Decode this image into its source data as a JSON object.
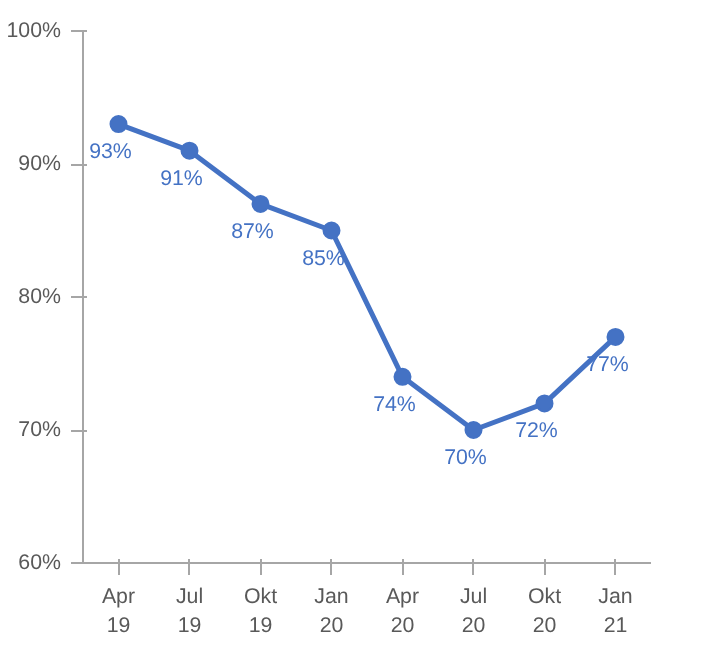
{
  "chart_data": {
    "type": "line",
    "categories": [
      "Apr\n19",
      "Jul\n19",
      "Okt\n19",
      "Jan\n20",
      "Apr\n20",
      "Jul\n20",
      "Okt\n20",
      "Jan\n21"
    ],
    "series": [
      {
        "color": "#4472c4",
        "values": [
          93,
          91,
          87,
          85,
          74,
          70,
          72,
          77
        ],
        "value_labels": [
          "93%",
          "91%",
          "87%",
          "85%",
          "74%",
          "70%",
          "72%",
          "77%"
        ]
      }
    ],
    "ylim": [
      60,
      100
    ],
    "yticks": [
      {
        "value": 60,
        "label": "60%"
      },
      {
        "value": 70,
        "label": "70%"
      },
      {
        "value": 80,
        "label": "80%"
      },
      {
        "value": 90,
        "label": "90%"
      },
      {
        "value": 100,
        "label": "100%"
      }
    ],
    "marker": "circle",
    "line_style": "solid",
    "grid": false
  }
}
